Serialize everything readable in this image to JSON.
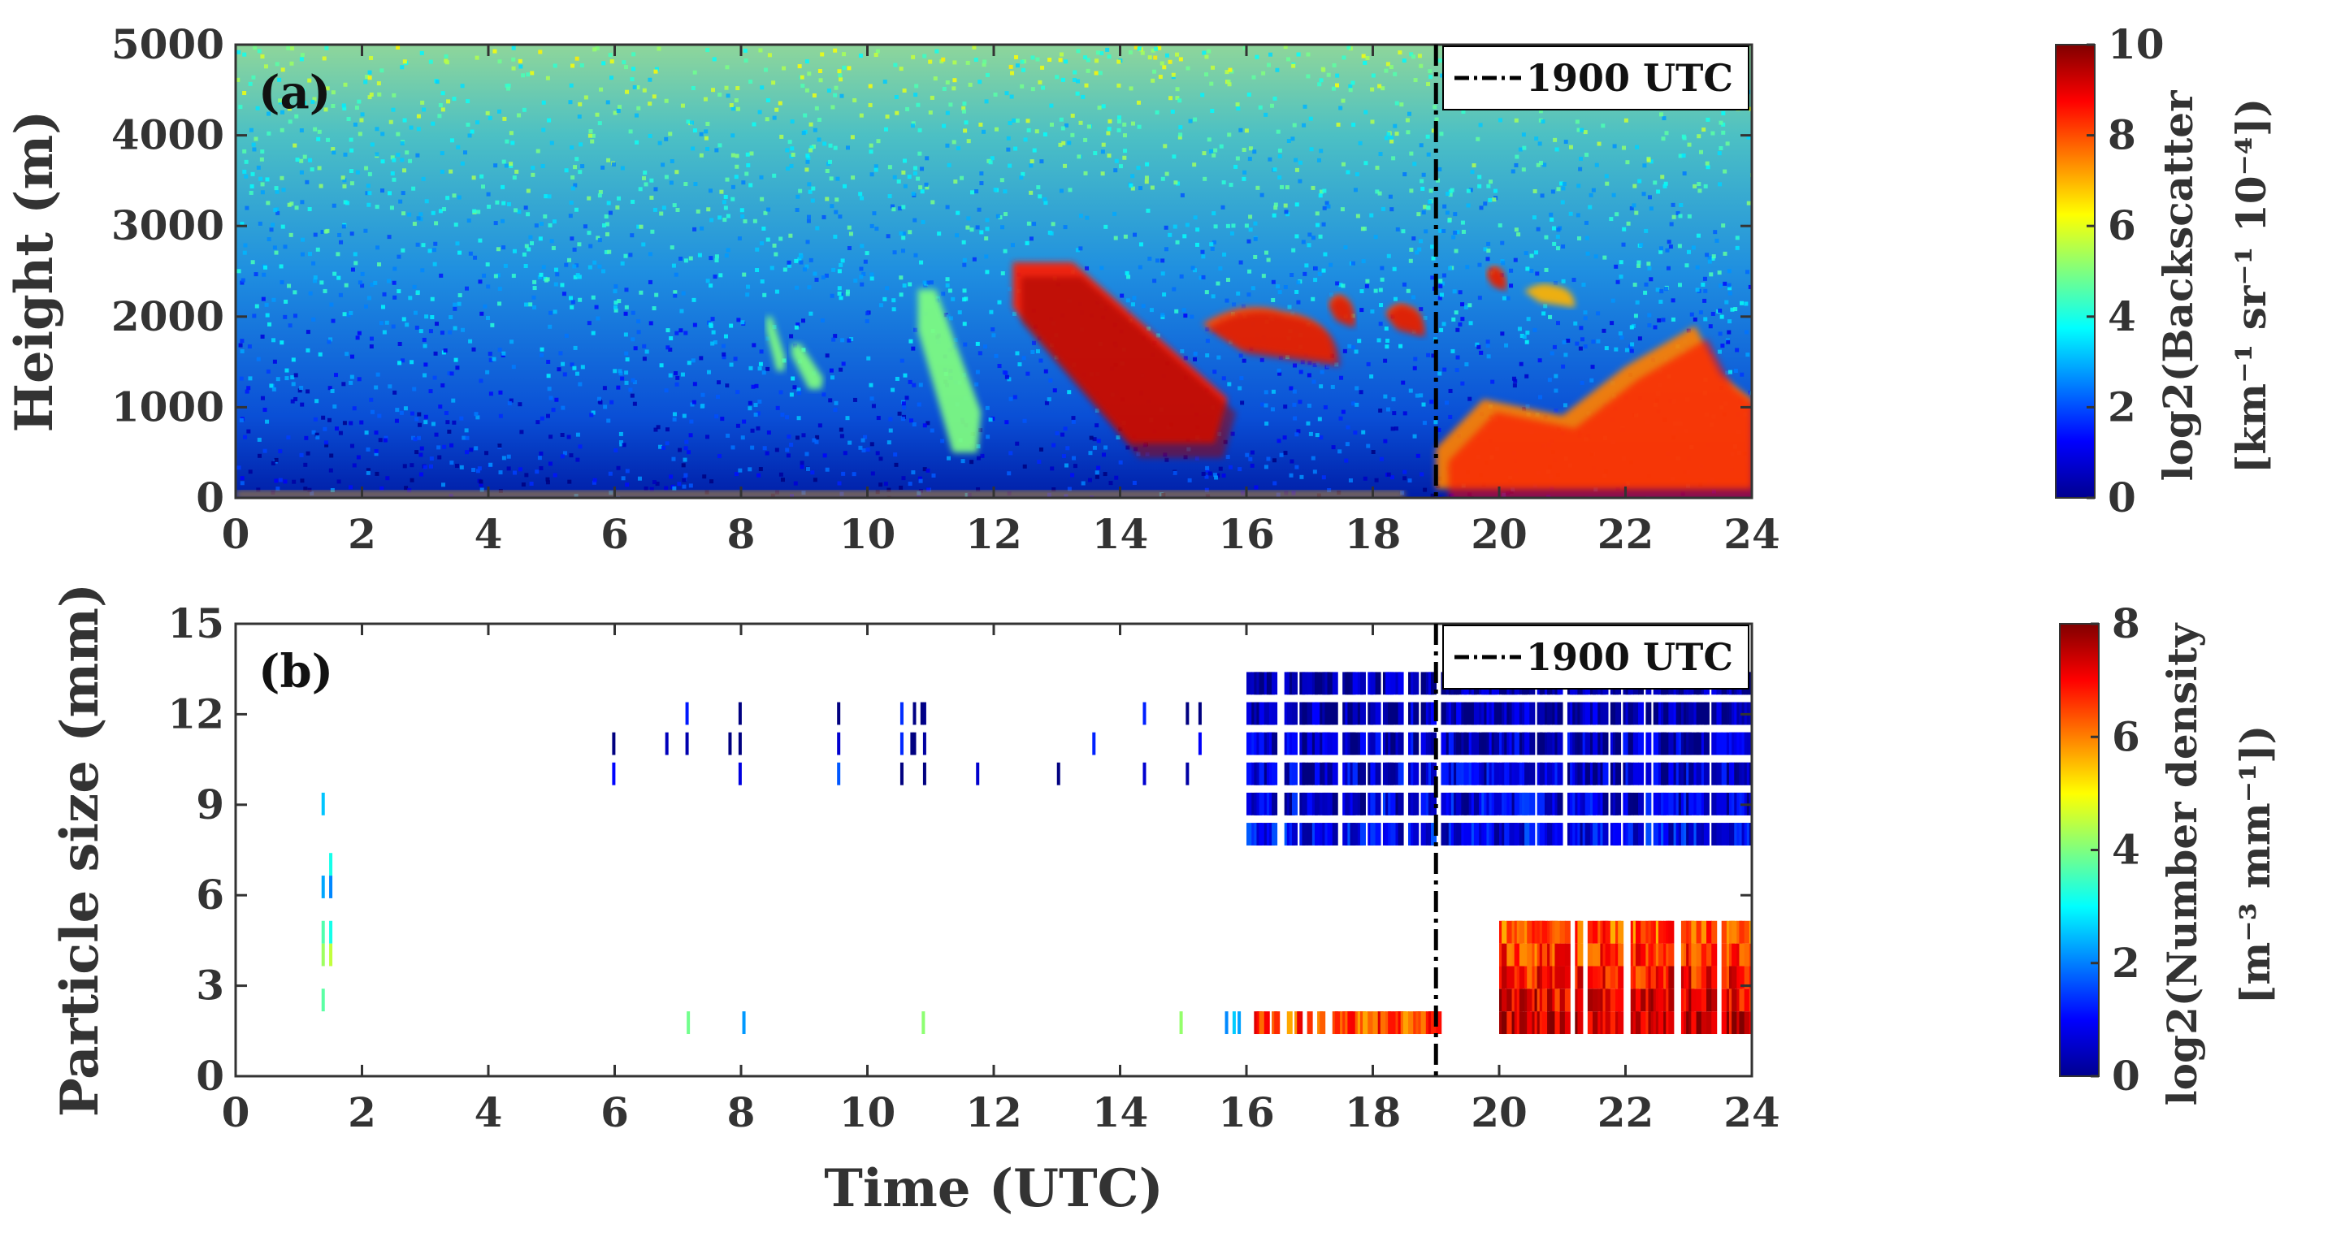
{
  "chart_data": [
    {
      "type": "heatmap",
      "panel_label": "(a)",
      "xlabel": "",
      "ylabel": "Height (m)",
      "xlim": [
        0,
        24
      ],
      "ylim": [
        0,
        5000
      ],
      "xticks": [
        0,
        2,
        4,
        6,
        8,
        10,
        12,
        14,
        16,
        18,
        20,
        22,
        24
      ],
      "xtick_labels": [
        "0",
        "2",
        "4",
        "6",
        "8",
        "10",
        "12",
        "14",
        "16",
        "18",
        "20",
        "22",
        "24"
      ],
      "yticks": [
        0,
        1000,
        2000,
        3000,
        4000,
        5000
      ],
      "ytick_labels": [
        "0",
        "1000",
        "2000",
        "3000",
        "4000",
        "5000"
      ],
      "colorbar": {
        "range": [
          0,
          10
        ],
        "ticks": [
          "0",
          "2",
          "4",
          "6",
          "8",
          "10"
        ],
        "label_line1": "log2(Backscatter",
        "label_line2": "[km⁻¹ sr⁻¹ 10⁻⁴])"
      },
      "vline": {
        "x": 19,
        "style": "dash-dot",
        "legend": "1900 UTC"
      },
      "features": [
        {
          "name": "surface-layer",
          "t_start": 0,
          "t_end": 18.5,
          "h_bottom": 0,
          "h_top": 80,
          "level": 7
        },
        {
          "name": "streak-1",
          "t_start": 8.4,
          "t_end": 8.7,
          "h_bottom": 1400,
          "h_top": 2000,
          "level": 5
        },
        {
          "name": "streak-2",
          "t_start": 8.8,
          "t_end": 9.3,
          "h_bottom": 1200,
          "h_top": 1700,
          "level": 5
        },
        {
          "name": "fallstreak-1",
          "t_start": 10.8,
          "t_end": 11.8,
          "h_bottom": 500,
          "h_top": 2300,
          "level": 5
        },
        {
          "name": "cloud-main",
          "t_start": 12.3,
          "t_end": 15.7,
          "h_bottom": 600,
          "h_top": 2600,
          "level": 8.5
        },
        {
          "name": "cloud-2",
          "t_start": 15.3,
          "t_end": 17.4,
          "h_bottom": 1500,
          "h_top": 2200,
          "level": 8
        },
        {
          "name": "cloud-3",
          "t_start": 17.3,
          "t_end": 17.7,
          "h_bottom": 1900,
          "h_top": 2300,
          "level": 8
        },
        {
          "name": "cloud-4",
          "t_start": 18.2,
          "t_end": 18.8,
          "h_bottom": 1800,
          "h_top": 2200,
          "level": 8
        },
        {
          "name": "cloud-5",
          "t_start": 19.8,
          "t_end": 20.1,
          "h_bottom": 2300,
          "h_top": 2600,
          "level": 8
        },
        {
          "name": "cloud-6",
          "t_start": 20.4,
          "t_end": 21.2,
          "h_bottom": 2100,
          "h_top": 2400,
          "level": 7
        },
        {
          "name": "lower-cloud",
          "t_start": 19.0,
          "t_end": 24,
          "h_bottom": 100,
          "h_top": 1900,
          "level": 7.5
        }
      ]
    },
    {
      "type": "heatmap",
      "panel_label": "(b)",
      "xlabel": "Time (UTC)",
      "ylabel": "Particle size (mm)",
      "xlim": [
        0,
        24
      ],
      "ylim": [
        0,
        15
      ],
      "xticks": [
        0,
        2,
        4,
        6,
        8,
        10,
        12,
        14,
        16,
        18,
        20,
        22,
        24
      ],
      "xtick_labels": [
        "0",
        "2",
        "4",
        "6",
        "8",
        "10",
        "12",
        "14",
        "16",
        "18",
        "20",
        "22",
        "24"
      ],
      "yticks": [
        0,
        3,
        6,
        9,
        12,
        15
      ],
      "ytick_labels": [
        "0",
        "3",
        "6",
        "9",
        "12",
        "15"
      ],
      "colorbar": {
        "range": [
          0,
          8
        ],
        "ticks": [
          "0",
          "2",
          "4",
          "6",
          "8"
        ],
        "label_line1": "log2(Number density",
        "label_line2": "[m⁻³ mm⁻¹])"
      },
      "vline": {
        "x": 19,
        "style": "dash-dot",
        "legend": "1900 UTC"
      },
      "features": [
        {
          "name": "early-sparse",
          "t_start": 1.2,
          "t_end": 2.8,
          "size_bottom": 1.5,
          "size_top": 9,
          "level": 4
        },
        {
          "name": "mid-day-small-sizes",
          "t_start": 3.5,
          "t_end": 16,
          "size_bottom": 1.5,
          "size_top": 2.2,
          "level": 3
        },
        {
          "name": "mid-day-large-sizes",
          "t_start": 5,
          "t_end": 15.5,
          "size_bottom": 10,
          "size_top": 12,
          "level": 0.5
        },
        {
          "name": "dense-small",
          "t_start": 16,
          "t_end": 19,
          "size_bottom": 1.5,
          "size_top": 2,
          "level": 6.5
        },
        {
          "name": "dense-large",
          "t_start": 16,
          "t_end": 24,
          "size_bottom": 7.5,
          "size_top": 13,
          "level": 1
        },
        {
          "name": "peak-region",
          "t_start": 20,
          "t_end": 24,
          "size_bottom": 1.5,
          "size_top": 5,
          "level": 7.5
        }
      ]
    }
  ]
}
